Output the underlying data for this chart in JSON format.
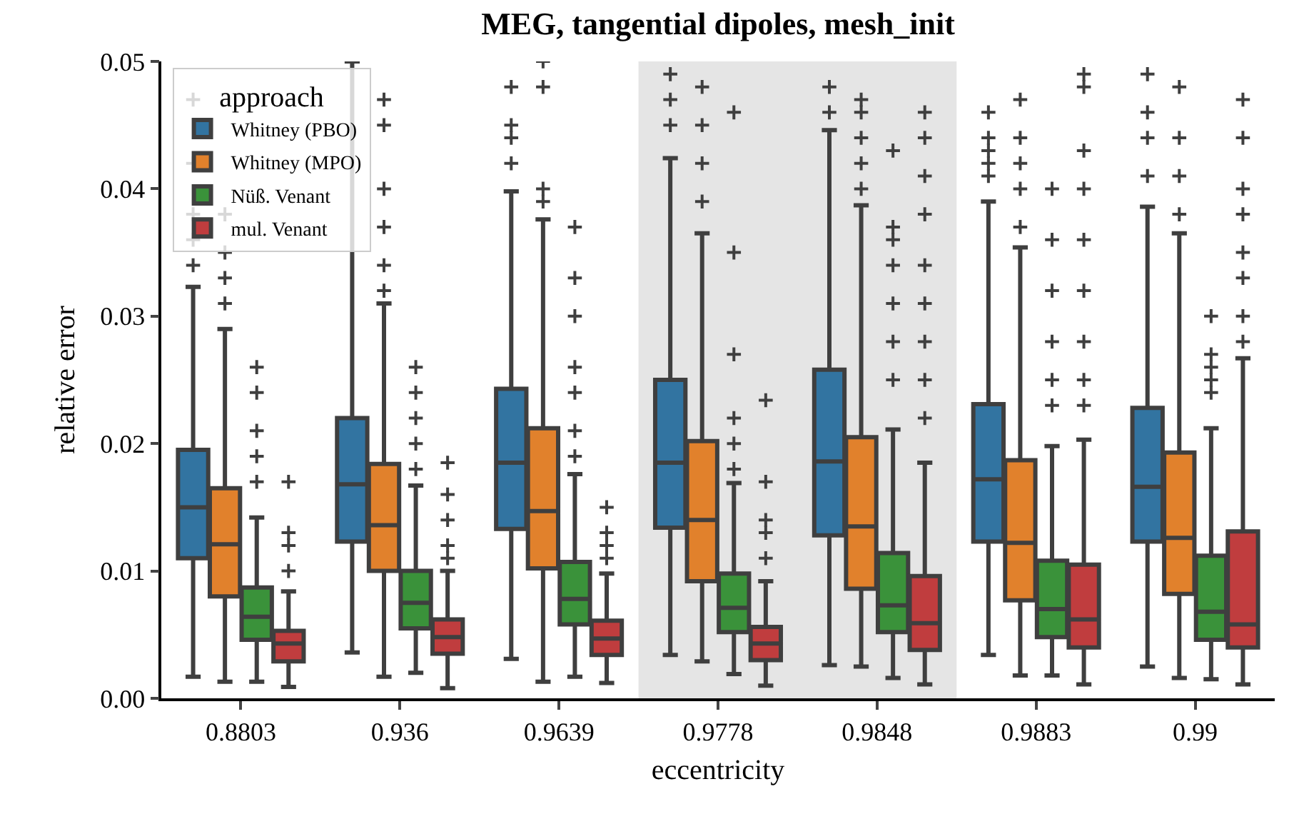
{
  "chart_data": {
    "type": "box",
    "title": "MEG, tangential dipoles, mesh_init",
    "xlabel": "eccentricity",
    "ylabel": "relative error",
    "legend_title": "approach",
    "legend": "top left",
    "grid": false,
    "marker": "cross",
    "categories": [
      "0.8803",
      "0.936",
      "0.9639",
      "0.9778",
      "0.9848",
      "0.9883",
      "0.99"
    ],
    "ylim": [
      0,
      0.05
    ],
    "yticks": [
      {
        "value": 0,
        "label": "0.00"
      },
      {
        "value": 0.01,
        "label": "0.01"
      },
      {
        "value": 0.02,
        "label": "0.02"
      },
      {
        "value": 0.03,
        "label": "0.03"
      },
      {
        "value": 0.04,
        "label": "0.04"
      },
      {
        "value": 0.05,
        "label": "0.05"
      }
    ],
    "bands": [
      {
        "axis": "x",
        "from": "0.9778",
        "to": "0.9848",
        "color": "#e5e5e5"
      }
    ],
    "series": [
      {
        "name": "Whitney (PBO)",
        "color": "#3274a1",
        "boxes": [
          {
            "low": 0.0017,
            "q1": 0.011,
            "median": 0.015,
            "q3": 0.0195,
            "high": 0.0323,
            "outliers": [
              0.034,
              0.036,
              0.038,
              0.042,
              0.047
            ]
          },
          {
            "low": 0.0036,
            "q1": 0.0123,
            "median": 0.0168,
            "q3": 0.022,
            "high": 0.05
          },
          {
            "low": 0.0031,
            "q1": 0.0133,
            "median": 0.0185,
            "q3": 0.0243,
            "high": 0.0398,
            "outliers": [
              0.042,
              0.044,
              0.045,
              0.048
            ]
          },
          {
            "low": 0.0034,
            "q1": 0.0134,
            "median": 0.0185,
            "q3": 0.025,
            "high": 0.0424,
            "outliers": [
              0.045,
              0.047,
              0.049
            ]
          },
          {
            "low": 0.0026,
            "q1": 0.0128,
            "median": 0.0186,
            "q3": 0.0258,
            "high": 0.0446,
            "outliers": [
              0.046,
              0.048
            ]
          },
          {
            "low": 0.0034,
            "q1": 0.0123,
            "median": 0.0172,
            "q3": 0.0231,
            "high": 0.039,
            "outliers": [
              0.041,
              0.042,
              0.043,
              0.044,
              0.046
            ]
          },
          {
            "low": 0.0025,
            "q1": 0.0123,
            "median": 0.0166,
            "q3": 0.0228,
            "high": 0.0386,
            "outliers": [
              0.041,
              0.044,
              0.046,
              0.049
            ]
          }
        ]
      },
      {
        "name": "Whitney (MPO)",
        "color": "#e1812c",
        "boxes": [
          {
            "low": 0.0013,
            "q1": 0.008,
            "median": 0.0121,
            "q3": 0.0165,
            "high": 0.029,
            "outliers": [
              0.031,
              0.033,
              0.035,
              0.038
            ]
          },
          {
            "low": 0.0017,
            "q1": 0.01,
            "median": 0.0136,
            "q3": 0.0184,
            "high": 0.031,
            "outliers": [
              0.032,
              0.034,
              0.037,
              0.04,
              0.045,
              0.047
            ]
          },
          {
            "low": 0.0013,
            "q1": 0.0102,
            "median": 0.0147,
            "q3": 0.0212,
            "high": 0.0376,
            "outliers": [
              0.039,
              0.04,
              0.048,
              0.05
            ]
          },
          {
            "low": 0.0029,
            "q1": 0.0092,
            "median": 0.014,
            "q3": 0.0202,
            "high": 0.0365,
            "outliers": [
              0.039,
              0.042,
              0.045,
              0.048
            ]
          },
          {
            "low": 0.0025,
            "q1": 0.0086,
            "median": 0.0135,
            "q3": 0.0205,
            "high": 0.0387,
            "outliers": [
              0.04,
              0.042,
              0.044,
              0.046,
              0.047
            ]
          },
          {
            "low": 0.0018,
            "q1": 0.0077,
            "median": 0.0122,
            "q3": 0.0187,
            "high": 0.0354,
            "outliers": [
              0.037,
              0.04,
              0.042,
              0.044,
              0.047
            ]
          },
          {
            "low": 0.0016,
            "q1": 0.0082,
            "median": 0.0126,
            "q3": 0.0193,
            "high": 0.0365,
            "outliers": [
              0.038,
              0.041,
              0.044,
              0.048
            ]
          }
        ]
      },
      {
        "name": "Nüß. Venant",
        "color": "#3a923a",
        "boxes": [
          {
            "low": 0.0013,
            "q1": 0.0046,
            "median": 0.0064,
            "q3": 0.0087,
            "high": 0.0142,
            "outliers": [
              0.017,
              0.019,
              0.021,
              0.024,
              0.026
            ]
          },
          {
            "low": 0.002,
            "q1": 0.0055,
            "median": 0.0075,
            "q3": 0.01,
            "high": 0.0167,
            "outliers": [
              0.018,
              0.02,
              0.022,
              0.024,
              0.026
            ]
          },
          {
            "low": 0.0017,
            "q1": 0.0058,
            "median": 0.0078,
            "q3": 0.0107,
            "high": 0.0176,
            "outliers": [
              0.019,
              0.021,
              0.024,
              0.026,
              0.03,
              0.033,
              0.037
            ]
          },
          {
            "low": 0.0019,
            "q1": 0.0052,
            "median": 0.0071,
            "q3": 0.0098,
            "high": 0.0169,
            "outliers": [
              0.018,
              0.02,
              0.022,
              0.027,
              0.035,
              0.046
            ]
          },
          {
            "low": 0.0016,
            "q1": 0.0052,
            "median": 0.0073,
            "q3": 0.0114,
            "high": 0.0211,
            "outliers": [
              0.025,
              0.028,
              0.031,
              0.034,
              0.036,
              0.037,
              0.043
            ]
          },
          {
            "low": 0.0018,
            "q1": 0.0048,
            "median": 0.007,
            "q3": 0.0108,
            "high": 0.0198,
            "outliers": [
              0.023,
              0.025,
              0.028,
              0.032,
              0.036,
              0.04
            ]
          },
          {
            "low": 0.0015,
            "q1": 0.0046,
            "median": 0.0068,
            "q3": 0.0112,
            "high": 0.0212,
            "outliers": [
              0.024,
              0.025,
              0.026,
              0.027,
              0.03
            ]
          }
        ]
      },
      {
        "name": "mul. Venant",
        "color": "#c03d3e",
        "boxes": [
          {
            "low": 0.0009,
            "q1": 0.0029,
            "median": 0.0043,
            "q3": 0.0053,
            "high": 0.0084,
            "outliers": [
              0.01,
              0.012,
              0.013,
              0.017
            ]
          },
          {
            "low": 0.0008,
            "q1": 0.0035,
            "median": 0.0048,
            "q3": 0.0062,
            "high": 0.01,
            "outliers": [
              0.011,
              0.012,
              0.014,
              0.016,
              0.0185
            ]
          },
          {
            "low": 0.0012,
            "q1": 0.0034,
            "median": 0.0047,
            "q3": 0.0061,
            "high": 0.0098,
            "outliers": [
              0.011,
              0.012,
              0.013,
              0.015
            ]
          },
          {
            "low": 0.001,
            "q1": 0.003,
            "median": 0.0043,
            "q3": 0.0056,
            "high": 0.0092,
            "outliers": [
              0.011,
              0.013,
              0.014,
              0.017,
              0.0234
            ]
          },
          {
            "low": 0.0011,
            "q1": 0.0038,
            "median": 0.0059,
            "q3": 0.0096,
            "high": 0.0185,
            "outliers": [
              0.022,
              0.025,
              0.028,
              0.031,
              0.034,
              0.038,
              0.041,
              0.044,
              0.046
            ]
          },
          {
            "low": 0.0011,
            "q1": 0.004,
            "median": 0.0062,
            "q3": 0.0105,
            "high": 0.0203,
            "outliers": [
              0.023,
              0.025,
              0.028,
              0.032,
              0.036,
              0.04,
              0.043,
              0.048,
              0.049
            ]
          },
          {
            "low": 0.0011,
            "q1": 0.004,
            "median": 0.0058,
            "q3": 0.0131,
            "high": 0.0267,
            "outliers": [
              0.028,
              0.03,
              0.033,
              0.035,
              0.038,
              0.04,
              0.044,
              0.047
            ]
          }
        ]
      }
    ]
  }
}
